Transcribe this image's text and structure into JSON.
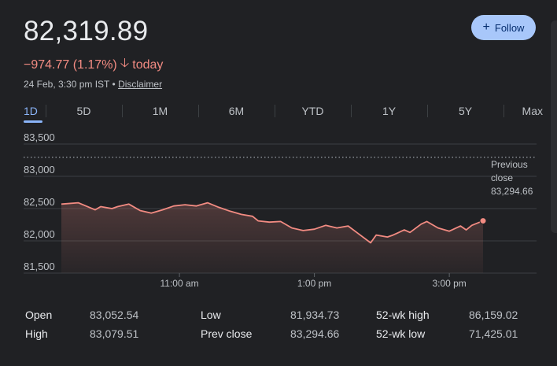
{
  "quote": {
    "price": "82,319.89",
    "change": "−974.77 (1.17%)",
    "direction_icon": "arrow-down-icon",
    "period": "today",
    "timestamp": "24 Feb, 3:30 pm IST",
    "separator": "•",
    "disclaimer": "Disclaimer"
  },
  "follow": {
    "icon": "plus-icon",
    "label": "Follow"
  },
  "tabs": [
    {
      "label": "1D",
      "active": true
    },
    {
      "label": "5D"
    },
    {
      "label": "1M"
    },
    {
      "label": "6M"
    },
    {
      "label": "YTD"
    },
    {
      "label": "1Y"
    },
    {
      "label": "5Y"
    },
    {
      "label": "Max"
    }
  ],
  "chart_data": {
    "type": "line",
    "title": "",
    "ylim": [
      81500,
      83500
    ],
    "y_ticks": [
      "83,500",
      "83,000",
      "82,500",
      "82,000",
      "81,500"
    ],
    "x_ticks": [
      "11:00 am",
      "1:00 pm",
      "3:00 pm"
    ],
    "x_tick_times": [
      "11:00",
      "13:00",
      "15:00"
    ],
    "x_range": [
      "09:15",
      "15:30"
    ],
    "reference_line": {
      "value": 83294.66,
      "label_lines": [
        "Previous",
        "close",
        "83,294.66"
      ]
    },
    "line_color": "#f28b82",
    "grid": true,
    "series": [
      {
        "x": [
          "09:15",
          "09:30",
          "09:45",
          "09:50",
          "10:00",
          "10:05",
          "10:15",
          "10:25",
          "10:35",
          "10:45",
          "10:55",
          "11:05",
          "11:15",
          "11:25",
          "11:35",
          "11:45",
          "11:55",
          "12:05",
          "12:10",
          "12:20",
          "12:30",
          "12:40",
          "12:50",
          "13:00",
          "13:10",
          "13:20",
          "13:30",
          "13:40",
          "13:50",
          "13:55",
          "14:05",
          "14:10",
          "14:20",
          "14:25",
          "14:35",
          "14:40",
          "14:50",
          "15:00",
          "15:10",
          "15:15",
          "15:20",
          "15:30"
        ],
        "y": [
          82570,
          82590,
          82480,
          82530,
          82500,
          82530,
          82570,
          82470,
          82430,
          82480,
          82540,
          82560,
          82540,
          82590,
          82520,
          82460,
          82410,
          82380,
          82310,
          82290,
          82300,
          82200,
          82160,
          82180,
          82240,
          82200,
          82230,
          82100,
          81970,
          82090,
          82060,
          82090,
          82170,
          82130,
          82260,
          82300,
          82200,
          82150,
          82230,
          82170,
          82240,
          82310
        ]
      }
    ]
  },
  "stats": [
    [
      {
        "label": "Open",
        "value": "83,052.54"
      },
      {
        "label": "Low",
        "value": "81,934.73"
      },
      {
        "label": "52-wk high",
        "value": "86,159.02"
      }
    ],
    [
      {
        "label": "High",
        "value": "83,079.51"
      },
      {
        "label": "Prev close",
        "value": "83,294.66"
      },
      {
        "label": "52-wk low",
        "value": "71,425.01"
      }
    ]
  ]
}
